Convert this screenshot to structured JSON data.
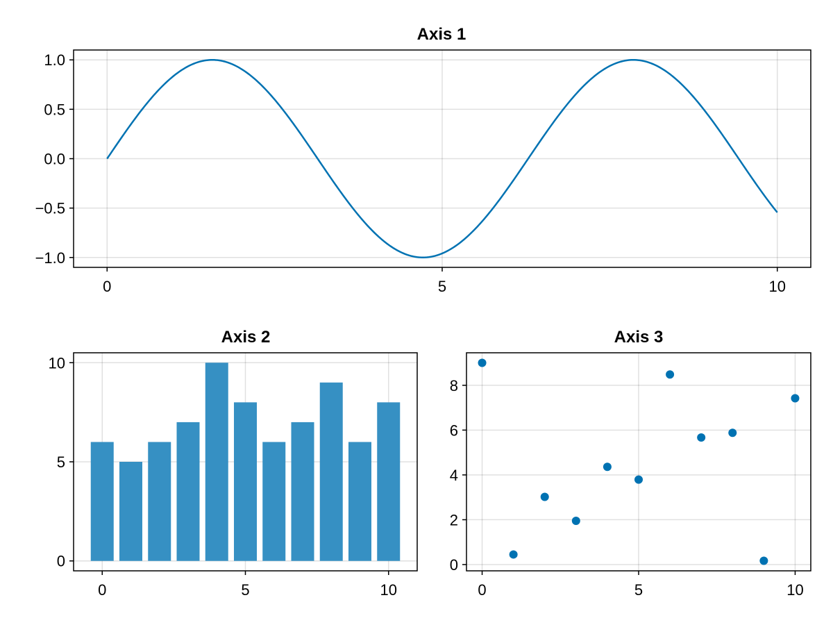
{
  "colors": {
    "line": "#0072b2",
    "bar": "#3690c3",
    "scatter": "#0072b2",
    "background": "#ffffff"
  },
  "chart_data": [
    {
      "id": "axis1",
      "type": "line",
      "title": "Axis 1",
      "function": "sin(x)",
      "x_range": [
        0,
        10
      ],
      "xlim": [
        -0.5,
        10.5
      ],
      "ylim": [
        -1.1,
        1.1
      ],
      "xticks": [
        0,
        5,
        10
      ],
      "xtick_labels": [
        "0",
        "5",
        "10"
      ],
      "yticks": [
        1.0,
        0.5,
        0.0,
        -0.5,
        -1.0
      ],
      "ytick_labels": [
        "1.0",
        "0.5",
        "0.0",
        "−0.5",
        "−1.0"
      ],
      "grid": true,
      "xlabel": "",
      "ylabel": ""
    },
    {
      "id": "axis2",
      "type": "bar",
      "title": "Axis 2",
      "x": [
        0,
        1,
        2,
        3,
        4,
        5,
        6,
        7,
        8,
        9,
        10
      ],
      "values": [
        6,
        5,
        6,
        7,
        10,
        8,
        6,
        7,
        9,
        6,
        8
      ],
      "xlim": [
        -1,
        11
      ],
      "ylim": [
        -0.5,
        10.5
      ],
      "xticks": [
        0,
        5,
        10
      ],
      "xtick_labels": [
        "0",
        "5",
        "10"
      ],
      "yticks": [
        10,
        5,
        0
      ],
      "ytick_labels": [
        "10",
        "5",
        "0"
      ],
      "grid": true,
      "xlabel": "",
      "ylabel": ""
    },
    {
      "id": "axis3",
      "type": "scatter",
      "title": "Axis 3",
      "x": [
        0,
        1,
        2,
        3,
        4,
        5,
        6,
        7,
        8,
        9,
        10
      ],
      "y": [
        9.0,
        0.45,
        3.02,
        1.95,
        4.36,
        3.79,
        8.48,
        5.67,
        5.88,
        0.17,
        7.42
      ],
      "xlim": [
        -0.5,
        10.5
      ],
      "ylim": [
        -0.28,
        9.45
      ],
      "xticks": [
        0,
        5,
        10
      ],
      "xtick_labels": [
        "0",
        "5",
        "10"
      ],
      "yticks": [
        8,
        6,
        4,
        2,
        0
      ],
      "ytick_labels": [
        "8",
        "6",
        "4",
        "2",
        "0"
      ],
      "grid": true,
      "xlabel": "",
      "ylabel": ""
    }
  ]
}
